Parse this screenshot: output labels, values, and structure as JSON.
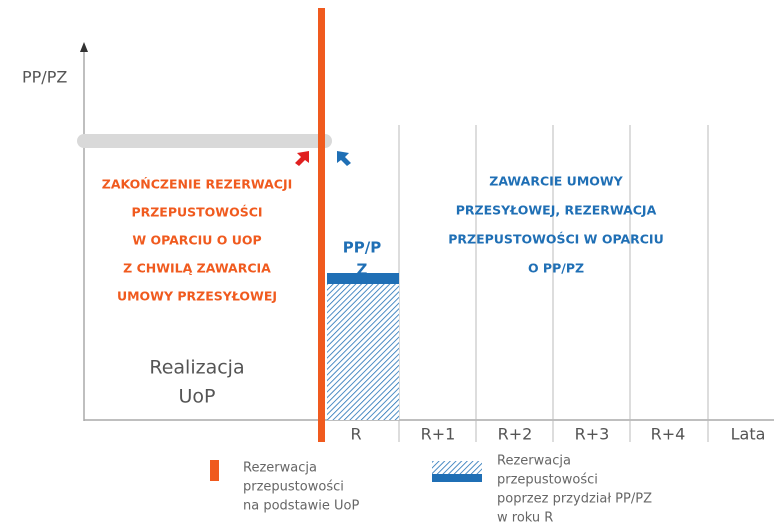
{
  "axis_label_y": "PP/PZ",
  "x_labels": [
    "R",
    "R+1",
    "R+2",
    "R+3",
    "R+4",
    "Lata"
  ],
  "left_text": [
    "ZAKOŃCZENIE REZERWACJI",
    "PRZEPUSTOWOŚCI",
    "W OPARCIU O UOP",
    "Z CHWILĄ ZAWARCIA",
    "UMOWY PRZESYŁOWEJ"
  ],
  "right_text": [
    "ZAWARCIE UMOWY",
    "PRZESYŁOWEJ, REZERWACJA",
    "PRZEPUSTOWOŚCI W OPARCIU",
    "O PP/PZ"
  ],
  "bar_label": [
    "PP/P",
    "Z"
  ],
  "region_label": [
    "Realizacja",
    "UoP"
  ],
  "legend": [
    {
      "lines": [
        "Rezerwacja",
        "przepustowości",
        "na podstawie UoP"
      ]
    },
    {
      "lines": [
        "Rezerwacja",
        "przepustowości",
        "poprzez przydział PP/PZ",
        "w roku R"
      ]
    }
  ]
}
